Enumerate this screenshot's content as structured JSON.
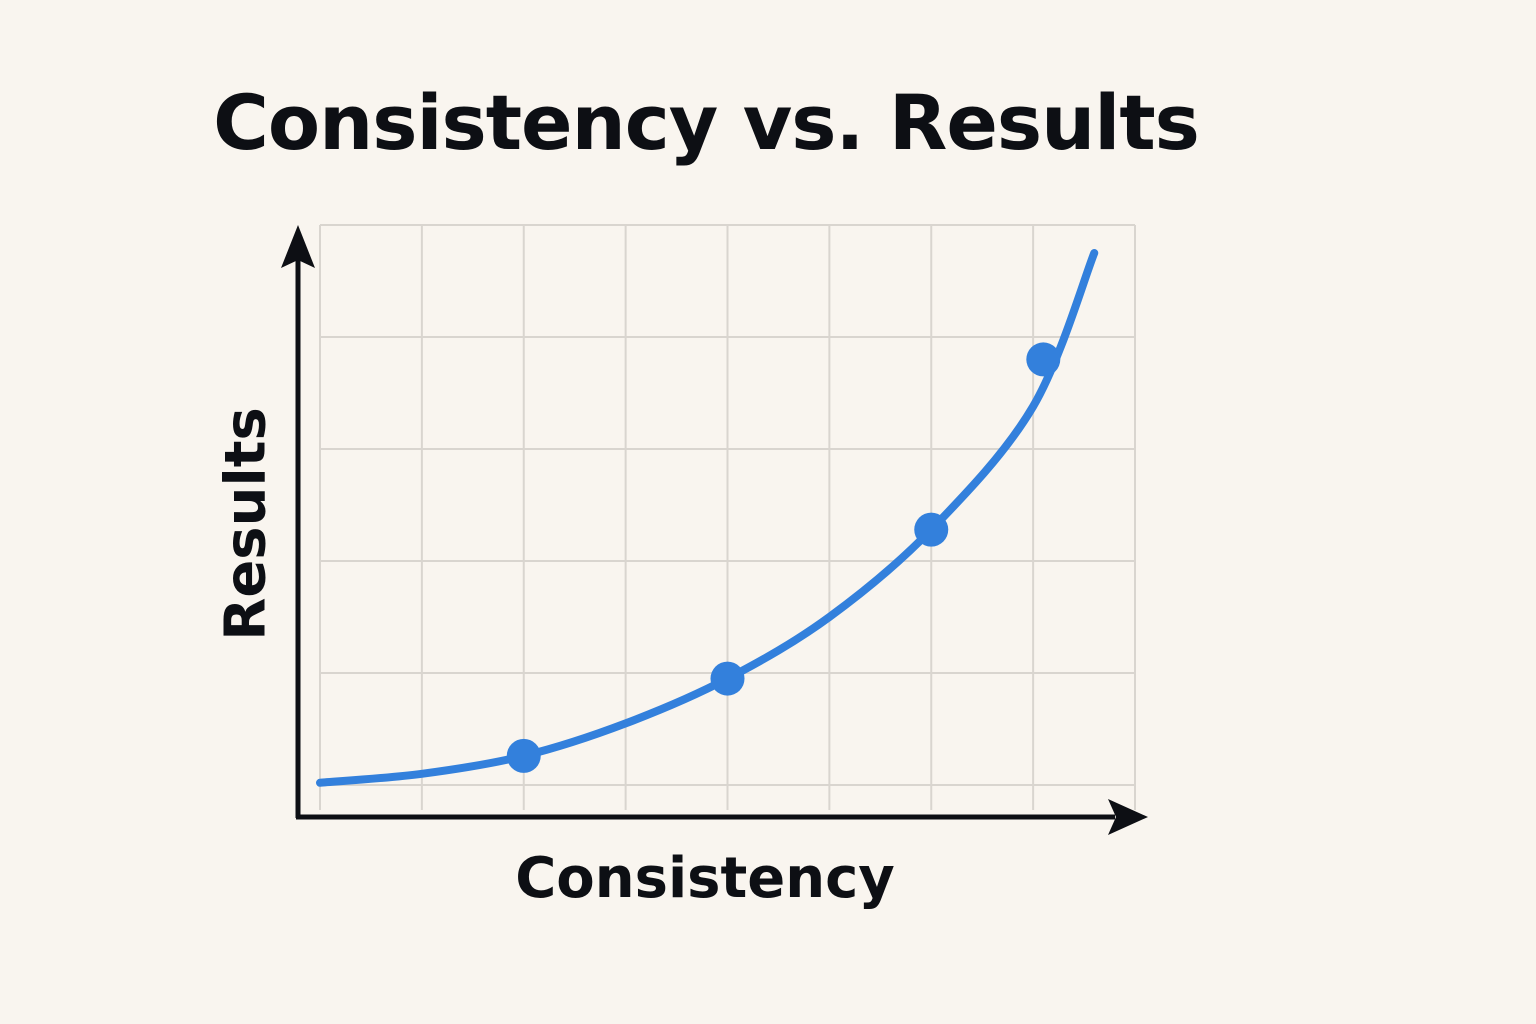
{
  "chart_data": {
    "type": "line",
    "title": "Consistency vs. Results",
    "xlabel": "Consistency",
    "ylabel": "Results",
    "grid": true,
    "grid_columns": 8,
    "grid_rows": 5,
    "tick_labels": false,
    "legend": null,
    "xlim": [
      0,
      8
    ],
    "ylim": [
      0,
      5
    ],
    "series": [
      {
        "name": "Results",
        "color": "#3380dc",
        "curve": [
          [
            0,
            0.02
          ],
          [
            1,
            0.1
          ],
          [
            2,
            0.26
          ],
          [
            3,
            0.55
          ],
          [
            4,
            0.95
          ],
          [
            5,
            1.5
          ],
          [
            6,
            2.28
          ],
          [
            7,
            3.38
          ],
          [
            7.6,
            4.75
          ]
        ],
        "markers": [
          [
            2,
            0.26
          ],
          [
            4,
            0.95
          ],
          [
            6,
            2.28
          ],
          [
            7.1,
            3.8
          ]
        ]
      }
    ]
  },
  "colors": {
    "background": "#f9f5ef",
    "grid": "#d9d5cf",
    "axis": "#0d0f14",
    "line": "#3380dc"
  }
}
